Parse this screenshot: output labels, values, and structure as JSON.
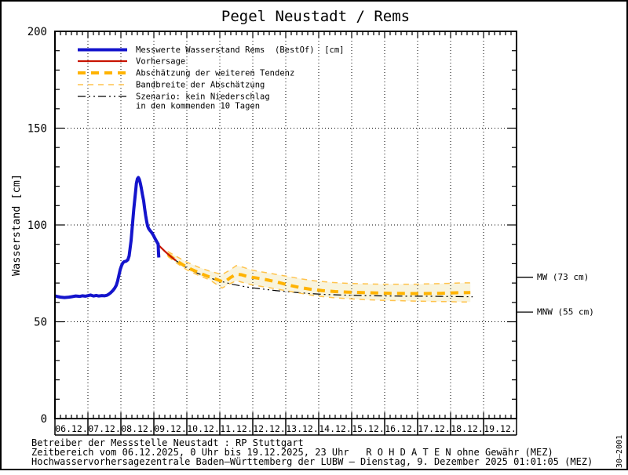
{
  "stamp": "30–2001",
  "footer": {
    "line1": "Betreiber der Messstelle Neustadt : RP Stuttgart",
    "line2": "Zeitbereich vom 06.12.2025, 0 Uhr bis 19.12.2025, 23 Uhr   R O H D A T E N ohne Gewähr (MEZ)",
    "line3": "Hochwasservorhersagezentrale Baden–Württemberg der LUBW – Dienstag, 9. Dezember 2025 01:01:05 (MEZ)"
  },
  "colors": {
    "measured": "#1414CC",
    "forecast": "#C81400",
    "tendency": "#FFB300",
    "band_edge": "#FFC34D",
    "band_fill": "#F8F4DE",
    "scenario": "#000000",
    "frame": "#000000",
    "background": "#FFFFFF"
  },
  "chart_data": {
    "type": "line",
    "title": "Pegel Neustadt / Rems",
    "xlabel": "",
    "ylabel": "Wasserstand [cm]",
    "ylim": [
      0,
      200
    ],
    "y_major_step": 50,
    "y_minor_step": 10,
    "x_span_days": 14,
    "x_minor_ticks_per_day": 6,
    "x_tick_labels": [
      "06.12.",
      "07.12.",
      "08.12.",
      "09.12.",
      "10.12.",
      "11.12.",
      "12.12.",
      "13.12.",
      "14.12.",
      "15.12.",
      "16.12.",
      "17.12.",
      "18.12.",
      "19.12."
    ],
    "grid": "dotted",
    "legend_position": "top-left-inside",
    "annotations": [
      {
        "label": "MW (73 cm)",
        "value_cm": 73
      },
      {
        "label": "MNW (55 cm)",
        "value_cm": 55
      }
    ],
    "legend": [
      {
        "label": [
          "Messwerte Wasserstand Rems  (BestOf)  [cm]"
        ],
        "color_key": "measured",
        "style": "solid-thick"
      },
      {
        "label": [
          "Vorhersage"
        ],
        "color_key": "forecast",
        "style": "solid"
      },
      {
        "label": [
          "Abschätzung der weiteren Tendenz"
        ],
        "color_key": "tendency",
        "style": "dashed-thick"
      },
      {
        "label": [
          "Bandbreite der Abschätzung"
        ],
        "color_key": "band_edge",
        "style": "dashed-thin"
      },
      {
        "label": [
          "Szenario: kein Niederschlag",
          "in den kommenden 10 Tagen"
        ],
        "color_key": "scenario",
        "style": "dashdot-thin"
      }
    ],
    "series": [
      {
        "name": "szenario",
        "label": "Szenario: kein Niederschlag in den kommenden 10 Tagen",
        "color_key": "scenario",
        "style": "dashdot-thin",
        "points": [
          [
            3.67,
            81.6
          ],
          [
            3.95,
            78.3
          ],
          [
            4.25,
            75.6
          ],
          [
            4.6,
            73.2
          ],
          [
            5.0,
            71.0
          ],
          [
            5.4,
            69.3
          ],
          [
            5.8,
            68.0
          ],
          [
            6.24,
            67.0
          ],
          [
            6.7,
            66.1
          ],
          [
            7.2,
            65.3
          ],
          [
            7.7,
            64.6
          ],
          [
            8.2,
            64.1
          ],
          [
            8.7,
            63.8
          ],
          [
            9.2,
            63.6
          ],
          [
            9.7,
            63.4
          ],
          [
            10.2,
            63.3
          ],
          [
            10.7,
            63.2
          ],
          [
            11.2,
            63.2
          ],
          [
            11.7,
            63.1
          ],
          [
            12.2,
            63.0
          ],
          [
            12.67,
            62.9
          ]
        ]
      },
      {
        "name": "band_upper",
        "label": "Bandbreite der Abschätzung (oben)",
        "color_key": "band_edge",
        "style": "dashed-thin",
        "points": [
          [
            3.42,
            86.3
          ],
          [
            3.7,
            83.6
          ],
          [
            4.0,
            80.8
          ],
          [
            4.35,
            78.2
          ],
          [
            4.7,
            76.1
          ],
          [
            5.07,
            74.4
          ],
          [
            5.3,
            76.6
          ],
          [
            5.5,
            79.0
          ],
          [
            5.7,
            78.2
          ],
          [
            5.95,
            76.8
          ],
          [
            6.24,
            75.8
          ],
          [
            6.6,
            74.8
          ],
          [
            7.0,
            73.6
          ],
          [
            7.45,
            72.2
          ],
          [
            7.9,
            71.1
          ],
          [
            8.4,
            70.3
          ],
          [
            8.9,
            69.8
          ],
          [
            9.4,
            69.6
          ],
          [
            9.9,
            69.4
          ],
          [
            10.4,
            69.4
          ],
          [
            10.9,
            69.4
          ],
          [
            11.4,
            69.6
          ],
          [
            11.9,
            69.8
          ],
          [
            12.4,
            70.1
          ],
          [
            12.6,
            70.1
          ]
        ]
      },
      {
        "name": "band_lower",
        "label": "Bandbreite der Abschätzung (unten)",
        "color_key": "band_edge",
        "style": "dashed-thin",
        "points": [
          [
            3.42,
            83.8
          ],
          [
            3.7,
            80.2
          ],
          [
            4.0,
            76.8
          ],
          [
            4.35,
            74.0
          ],
          [
            4.7,
            71.6
          ],
          [
            5.07,
            67.4
          ],
          [
            5.3,
            69.6
          ],
          [
            5.5,
            71.2
          ],
          [
            5.7,
            70.3
          ],
          [
            5.95,
            69.2
          ],
          [
            6.24,
            68.3
          ],
          [
            6.6,
            67.3
          ],
          [
            7.0,
            66.1
          ],
          [
            7.45,
            64.7
          ],
          [
            7.9,
            63.4
          ],
          [
            8.4,
            62.5
          ],
          [
            8.9,
            61.9
          ],
          [
            9.4,
            61.4
          ],
          [
            9.9,
            61.1
          ],
          [
            10.4,
            60.9
          ],
          [
            10.9,
            60.7
          ],
          [
            11.4,
            60.5
          ],
          [
            11.9,
            60.4
          ],
          [
            12.4,
            60.2
          ],
          [
            12.6,
            60.2
          ]
        ]
      },
      {
        "name": "tendenz",
        "label": "Abschätzung der weiteren Tendenz",
        "color_key": "tendency",
        "style": "dashed-thick",
        "points": [
          [
            3.42,
            85.0
          ],
          [
            3.67,
            81.7
          ],
          [
            3.9,
            79.2
          ],
          [
            4.12,
            77.2
          ],
          [
            4.36,
            75.4
          ],
          [
            4.6,
            73.7
          ],
          [
            4.85,
            72.2
          ],
          [
            5.07,
            70.8
          ],
          [
            5.18,
            71.0
          ],
          [
            5.32,
            72.8
          ],
          [
            5.5,
            74.6
          ],
          [
            5.65,
            74.3
          ],
          [
            5.82,
            73.5
          ],
          [
            6.0,
            72.9
          ],
          [
            6.24,
            72.3
          ],
          [
            6.5,
            71.4
          ],
          [
            6.78,
            70.3
          ],
          [
            7.07,
            69.0
          ],
          [
            7.4,
            67.8
          ],
          [
            7.75,
            66.8
          ],
          [
            8.1,
            66.1
          ],
          [
            8.5,
            65.6
          ],
          [
            8.9,
            65.3
          ],
          [
            9.3,
            65.1
          ],
          [
            9.75,
            64.9
          ],
          [
            10.2,
            64.7
          ],
          [
            10.7,
            64.6
          ],
          [
            11.2,
            64.6
          ],
          [
            11.7,
            64.7
          ],
          [
            12.2,
            65.0
          ],
          [
            12.6,
            65.1
          ]
        ]
      },
      {
        "name": "vorhersage",
        "label": "Vorhersage",
        "color_key": "forecast",
        "style": "solid",
        "points": [
          [
            3.1,
            90.3
          ],
          [
            3.2,
            88.6
          ],
          [
            3.32,
            86.6
          ],
          [
            3.45,
            84.6
          ],
          [
            3.58,
            82.8
          ],
          [
            3.67,
            81.6
          ]
        ]
      },
      {
        "name": "messwerte",
        "label": "Messwerte Wasserstand Rems (BestOf) [cm]",
        "color_key": "measured",
        "style": "solid-thick",
        "points": [
          [
            0,
            63.4
          ],
          [
            0.08,
            63.0
          ],
          [
            0.17,
            62.7
          ],
          [
            0.29,
            62.5
          ],
          [
            0.42,
            62.7
          ],
          [
            0.5,
            62.9
          ],
          [
            0.63,
            63.3
          ],
          [
            0.75,
            63.1
          ],
          [
            0.83,
            63.4
          ],
          [
            0.92,
            63.2
          ],
          [
            1.0,
            63.5
          ],
          [
            1.08,
            63.8
          ],
          [
            1.17,
            63.3
          ],
          [
            1.25,
            63.6
          ],
          [
            1.33,
            63.3
          ],
          [
            1.42,
            63.5
          ],
          [
            1.5,
            63.4
          ],
          [
            1.58,
            63.7
          ],
          [
            1.63,
            64.2
          ],
          [
            1.69,
            65.0
          ],
          [
            1.75,
            66.0
          ],
          [
            1.81,
            67.3
          ],
          [
            1.86,
            68.8
          ],
          [
            1.9,
            71.0
          ],
          [
            1.94,
            74.0
          ],
          [
            1.98,
            77.0
          ],
          [
            2.02,
            79.0
          ],
          [
            2.06,
            80.4
          ],
          [
            2.1,
            81.0
          ],
          [
            2.16,
            81.3
          ],
          [
            2.21,
            82.0
          ],
          [
            2.25,
            84.0
          ],
          [
            2.28,
            88.0
          ],
          [
            2.31,
            92.0
          ],
          [
            2.34,
            98.0
          ],
          [
            2.37,
            104.0
          ],
          [
            2.39,
            108.0
          ],
          [
            2.42,
            113.0
          ],
          [
            2.45,
            118.0
          ],
          [
            2.47,
            121.5
          ],
          [
            2.5,
            123.8
          ],
          [
            2.53,
            124.5
          ],
          [
            2.56,
            123.5
          ],
          [
            2.59,
            121.5
          ],
          [
            2.62,
            119.0
          ],
          [
            2.65,
            116.0
          ],
          [
            2.69,
            112.5
          ],
          [
            2.72,
            108.5
          ],
          [
            2.75,
            105.0
          ],
          [
            2.78,
            102.0
          ],
          [
            2.81,
            99.5
          ],
          [
            2.84,
            98.2
          ],
          [
            2.88,
            97.2
          ],
          [
            2.92,
            96.4
          ],
          [
            2.96,
            95.4
          ],
          [
            3.0,
            94.2
          ],
          [
            3.04,
            92.8
          ],
          [
            3.08,
            91.6
          ],
          [
            3.11,
            90.7
          ],
          [
            3.13,
            90.2
          ],
          [
            3.14,
            86.0
          ],
          [
            3.15,
            83.2
          ]
        ]
      }
    ]
  }
}
